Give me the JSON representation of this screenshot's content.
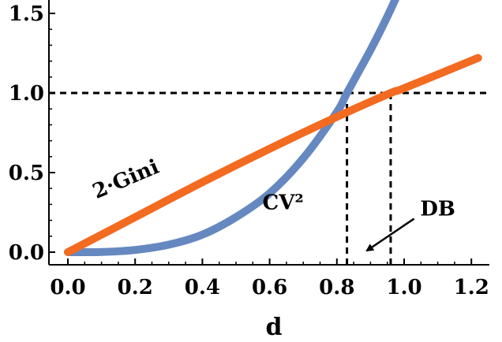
{
  "chart_data": {
    "type": "line",
    "xlabel": "d",
    "ylabel": "",
    "xlim": [
      0,
      1.22
    ],
    "ylim": [
      0,
      1.55
    ],
    "x_ticks": [
      "0.0",
      "0.2",
      "0.4",
      "0.6",
      "0.8",
      "1.0",
      "1.2"
    ],
    "y_ticks": [
      "0.0",
      "0.5",
      "1.0",
      "1.5"
    ],
    "reference_line_y": 1.0,
    "series": [
      {
        "name": "CV²",
        "color": "#6688c0",
        "x": [
          0.0,
          0.1,
          0.2,
          0.3,
          0.4,
          0.5,
          0.6,
          0.7,
          0.8,
          0.83,
          0.9,
          0.95,
          1.0
        ],
        "y": [
          0.0,
          0.001,
          0.014,
          0.047,
          0.11,
          0.22,
          0.37,
          0.59,
          0.88,
          1.0,
          1.27,
          1.48,
          1.71
        ]
      },
      {
        "name": "2·Gini",
        "color": "#f26b21",
        "x": [
          0.0,
          0.2,
          0.4,
          0.6,
          0.8,
          0.96,
          1.0,
          1.22
        ],
        "y": [
          0.0,
          0.22,
          0.44,
          0.65,
          0.85,
          1.0,
          1.03,
          1.22
        ]
      }
    ],
    "vertical_markers": [
      {
        "x": 0.83,
        "y": 1.0
      },
      {
        "x": 0.96,
        "y": 1.0
      }
    ],
    "annotations": [
      {
        "text": "2·Gini",
        "x": 0.18,
        "y": 0.42,
        "rotation": -23
      },
      {
        "text": "CV²",
        "x": 0.64,
        "y": 0.27
      },
      {
        "text": "DB",
        "x": 1.1,
        "y": 0.23,
        "arrow_to": [
          0.88,
          0.0
        ]
      }
    ]
  }
}
